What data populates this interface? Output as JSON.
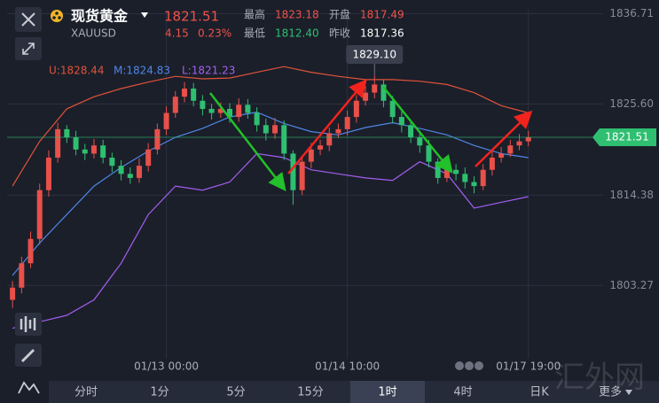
{
  "header": {
    "name": "现货黄金",
    "symbol": "XAUUSD",
    "price": "1821.51",
    "change": "4.15",
    "change_pct": "0.23%",
    "stats": [
      {
        "label": "最高",
        "value": "1823.18"
      },
      {
        "label": "开盘",
        "value": "1817.49"
      },
      {
        "label": "最低",
        "value": "1812.40"
      },
      {
        "label": "昨收",
        "value": "1817.36"
      }
    ]
  },
  "chart_data": {
    "type": "candlestick",
    "open": [
      1801.5,
      1803,
      1806,
      1809,
      1815,
      1819,
      1822.5,
      1821.5,
      1820,
      1819.5,
      1820.5,
      1819,
      1818,
      1817,
      1816.5,
      1818,
      1820,
      1822.5,
      1824.5,
      1826.5,
      1827.5,
      1826,
      1825,
      1824.5,
      1825,
      1824,
      1825.5,
      1824.5,
      1823,
      1822,
      1823,
      1819.5,
      1815,
      1818.5,
      1820,
      1820.5,
      1822,
      1822.5,
      1824,
      1826,
      1827,
      1828,
      1826,
      1824,
      1823,
      1821.5,
      1820.5,
      1818.5,
      1816.5,
      1817.5,
      1817,
      1816,
      1815.5,
      1817.5,
      1819,
      1819.5,
      1820.5,
      1821
    ],
    "high": [
      1803.8,
      1806.8,
      1809.9,
      1815.8,
      1819.9,
      1823.3,
      1823,
      1822.3,
      1820.7,
      1821.3,
      1821.2,
      1819.6,
      1818.7,
      1817.8,
      1818.9,
      1820.8,
      1823.2,
      1825.3,
      1827.2,
      1828.3,
      1828.2,
      1826.7,
      1825.6,
      1825.8,
      1825.7,
      1826.3,
      1826.2,
      1825.2,
      1823.8,
      1823.9,
      1823.6,
      1819.9,
      1819.2,
      1820.8,
      1821.2,
      1822.7,
      1823.2,
      1824.8,
      1826.7,
      1827.8,
      1829.1,
      1828.6,
      1826.6,
      1824.7,
      1823.6,
      1822.3,
      1821.2,
      1818.9,
      1818.3,
      1818.2,
      1817.8,
      1816.7,
      1818.2,
      1819.8,
      1820.3,
      1821.2,
      1821.9,
      1822.3
    ],
    "low": [
      1800.5,
      1802.3,
      1805.4,
      1808.3,
      1814.2,
      1818.4,
      1820.8,
      1819.3,
      1818.7,
      1818.9,
      1818.3,
      1817.2,
      1816.2,
      1815.8,
      1815.9,
      1817.3,
      1819.4,
      1821.8,
      1823.9,
      1825.8,
      1825.3,
      1824.2,
      1823.7,
      1823.9,
      1823.3,
      1823.4,
      1823.8,
      1822.2,
      1821.1,
      1821.3,
      1818.7,
      1813.2,
      1814.4,
      1817.7,
      1819.3,
      1819.8,
      1821.4,
      1821.7,
      1823.3,
      1825.4,
      1826.3,
      1825.2,
      1823.2,
      1822.1,
      1820.8,
      1819.6,
      1817.8,
      1815.8,
      1816,
      1816.2,
      1815.2,
      1814.6,
      1815,
      1816.8,
      1818.4,
      1819.1,
      1819.9,
      1820.4
    ],
    "close": [
      1803,
      1806,
      1809,
      1815,
      1819,
      1822.5,
      1821.5,
      1820,
      1819.5,
      1820.5,
      1819,
      1818,
      1817,
      1816.5,
      1818,
      1820,
      1822.5,
      1824.5,
      1826.5,
      1827.5,
      1826,
      1825,
      1824.5,
      1825,
      1824,
      1825.5,
      1824.5,
      1823,
      1822,
      1823,
      1819.5,
      1815,
      1818.5,
      1820,
      1820.5,
      1822,
      1822.5,
      1824,
      1826,
      1827,
      1828,
      1826,
      1824,
      1823,
      1821.5,
      1820.5,
      1818.5,
      1816.5,
      1817.5,
      1817,
      1816,
      1815.5,
      1817.5,
      1819,
      1819.5,
      1820.5,
      1821,
      1821.51
    ],
    "up_color": "#e8504a",
    "down_color": "#2fbf71",
    "series": [
      {
        "name": "U:1828.44",
        "color": "#e0533a",
        "x": [
          0,
          3,
          6,
          9,
          12,
          15,
          18,
          21,
          24,
          27,
          30,
          33,
          36,
          39,
          42,
          45,
          48,
          51,
          54,
          57
        ],
        "values": [
          1815.5,
          1821,
          1825,
          1826.5,
          1827.5,
          1828.3,
          1829,
          1828.7,
          1828.8,
          1829.5,
          1830.2,
          1829.5,
          1829,
          1828.6,
          1828.6,
          1828.4,
          1828,
          1827,
          1825.4,
          1824.5
        ]
      },
      {
        "name": "M:1824.83",
        "color": "#4f86e8",
        "x": [
          0,
          3,
          6,
          9,
          12,
          15,
          18,
          21,
          24,
          27,
          30,
          33,
          36,
          39,
          42,
          45,
          48,
          51,
          54,
          57
        ],
        "values": [
          1804.5,
          1808.5,
          1812,
          1815.5,
          1817.8,
          1819.8,
          1821.5,
          1822.6,
          1824,
          1824.6,
          1823.2,
          1822.2,
          1821.8,
          1822.7,
          1823.3,
          1822.6,
          1821.8,
          1820.5,
          1819.5,
          1819
        ]
      },
      {
        "name": "L:1821.23",
        "color": "#a35ef0",
        "x": [
          0,
          3,
          6,
          9,
          12,
          15,
          18,
          21,
          24,
          27,
          30,
          33,
          36,
          39,
          42,
          45,
          48,
          51,
          54,
          57
        ],
        "values": [
          1798,
          1798.8,
          1799.6,
          1801.5,
          1806,
          1812,
          1815.5,
          1815,
          1816,
          1819.5,
          1819,
          1817.5,
          1817,
          1816.5,
          1816.2,
          1818.5,
          1817,
          1812.8,
          1813.5,
          1814.2
        ]
      }
    ],
    "xlim": [
      -0.6,
      63.3
    ],
    "xticks": [
      {
        "value": 17,
        "label": "01/13 00:00"
      },
      {
        "value": 37,
        "label": "01/14 10:00"
      },
      {
        "value": 57,
        "label": "01/17 19:00"
      }
    ],
    "ylim": [
      1794.8,
      1837.2
    ],
    "yticks": [
      1836.71,
      {
        "value": 1825.6,
        "label": "1825.60"
      },
      1814.38,
      1803.27
    ],
    "grid": true,
    "last_price": {
      "value": 1821.51,
      "label": "1821.51",
      "color": "#2fbf71"
    },
    "max_label": {
      "value": 1829.1,
      "label": "1829.10"
    }
  },
  "toolbar": {
    "tabs": [
      "分时",
      "1分",
      "5分",
      "15分",
      "1时",
      "4时",
      "日K",
      "更多"
    ],
    "selected": "1时"
  },
  "watermark": "汇外网"
}
